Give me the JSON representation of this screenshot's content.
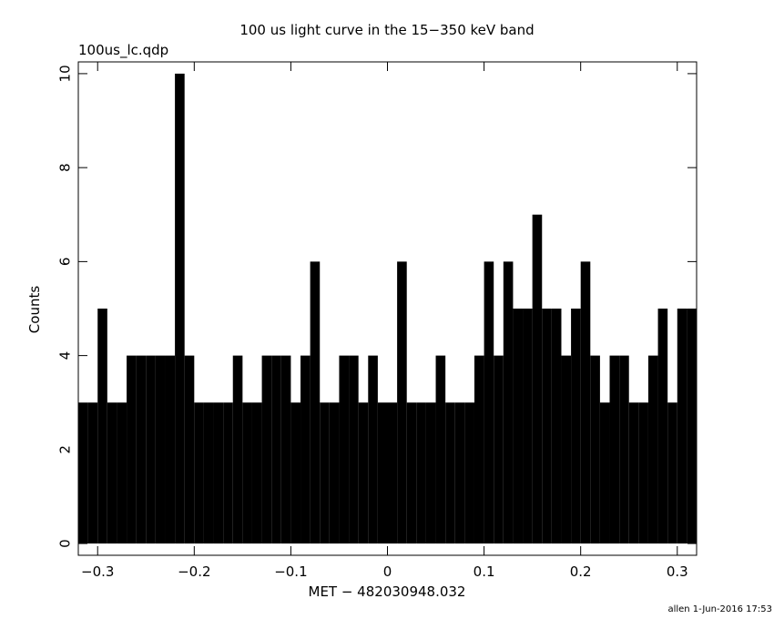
{
  "chart_data": {
    "type": "histogram",
    "title": "100 us light curve in the 15−350 keV band",
    "subtitle": "100us_lc.qdp",
    "x_label": "MET − 482030948.032",
    "y_label": "Counts",
    "footer": "allen  1-Jun-2016 17:53",
    "color": "#000000",
    "bins": [
      -0.32,
      -0.31,
      -0.3,
      -0.29,
      -0.28,
      -0.27,
      -0.26,
      -0.25,
      -0.24,
      -0.23,
      -0.22,
      -0.21,
      -0.2,
      -0.19,
      -0.18,
      -0.17,
      -0.16,
      -0.15,
      -0.14,
      -0.13,
      -0.12,
      -0.11,
      -0.1,
      -0.09,
      -0.08,
      -0.07,
      -0.06,
      -0.05,
      -0.04,
      -0.03,
      -0.02,
      -0.01,
      0,
      0.01,
      0.02,
      0.03,
      0.04,
      0.05,
      0.06,
      0.07,
      0.08,
      0.09,
      0.1,
      0.11,
      0.12,
      0.13,
      0.14,
      0.15,
      0.16,
      0.17,
      0.18,
      0.19,
      0.2,
      0.21,
      0.22,
      0.23,
      0.24,
      0.25,
      0.26,
      0.27,
      0.28,
      0.29,
      0.3,
      0.31,
      0.32
    ],
    "values": [
      3,
      3,
      5,
      3,
      3,
      4,
      4,
      4,
      4,
      4,
      10,
      4,
      3,
      3,
      3,
      3,
      4,
      3,
      3,
      4,
      4,
      4,
      3,
      4,
      6,
      3,
      3,
      4,
      4,
      3,
      4,
      3,
      3,
      6,
      3,
      3,
      3,
      4,
      3,
      3,
      3,
      4,
      6,
      4,
      6,
      5,
      5,
      7,
      5,
      5,
      4,
      5,
      6,
      4,
      3,
      4,
      4,
      3,
      3,
      4,
      5,
      3,
      5,
      5
    ],
    "xlim": [
      -0.32,
      0.32
    ],
    "ylim": [
      -0.25,
      10.25
    ],
    "xticks": [
      {
        "value": -0.3,
        "label": "−0.3"
      },
      {
        "value": -0.2,
        "label": "−0.2"
      },
      {
        "value": -0.1,
        "label": "−0.1"
      },
      0,
      0.1,
      0.2,
      0.3
    ],
    "yticks": [
      0,
      2,
      4,
      6,
      8,
      10
    ]
  }
}
